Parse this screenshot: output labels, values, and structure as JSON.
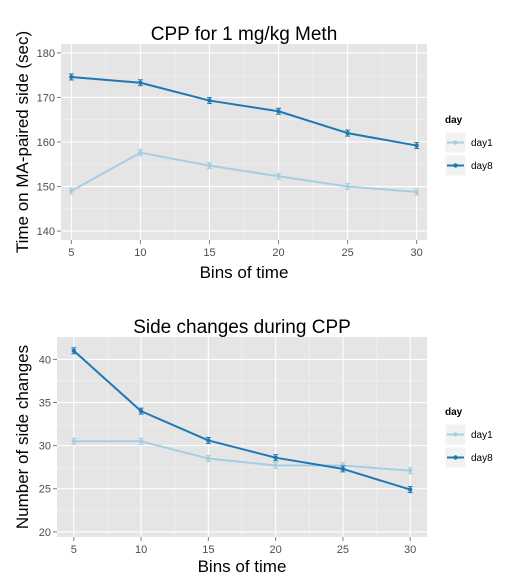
{
  "chart_data": [
    {
      "type": "line",
      "title": "CPP for 1 mg/kg Meth",
      "xlabel": "Bins of time",
      "ylabel": "Time on MA-paired side (sec)",
      "x": [
        5,
        10,
        15,
        20,
        25,
        30
      ],
      "xlim": [
        4.25,
        30.75
      ],
      "ylim": [
        138,
        182
      ],
      "yticks": [
        140,
        150,
        160,
        170,
        180
      ],
      "xticks": [
        5,
        10,
        15,
        20,
        25,
        30
      ],
      "grid": true,
      "legend_title": "day",
      "legend_position": "right",
      "series": [
        {
          "name": "day1",
          "color": "#a6cee3",
          "values": [
            149.0,
            157.6,
            154.7,
            152.3,
            150.0,
            148.8
          ]
        },
        {
          "name": "day8",
          "color": "#1f78b4",
          "values": [
            174.6,
            173.3,
            169.3,
            166.9,
            162.0,
            159.2
          ]
        }
      ]
    },
    {
      "type": "line",
      "title": "Side changes during CPP",
      "xlabel": "Bins of time",
      "ylabel": "Number of side changes",
      "x": [
        5,
        10,
        15,
        20,
        25,
        30
      ],
      "xlim": [
        3.75,
        31.25
      ],
      "ylim": [
        19.4,
        42.6
      ],
      "yticks": [
        20,
        25,
        30,
        35,
        40
      ],
      "xticks": [
        5,
        10,
        15,
        20,
        25,
        30
      ],
      "grid": true,
      "legend_title": "day",
      "legend_position": "right",
      "series": [
        {
          "name": "day1",
          "color": "#a6cee3",
          "values": [
            30.5,
            30.5,
            28.5,
            27.7,
            27.7,
            27.1
          ]
        },
        {
          "name": "day8",
          "color": "#1f78b4",
          "values": [
            41.0,
            34.0,
            30.6,
            28.6,
            27.3,
            24.9
          ]
        }
      ]
    }
  ]
}
